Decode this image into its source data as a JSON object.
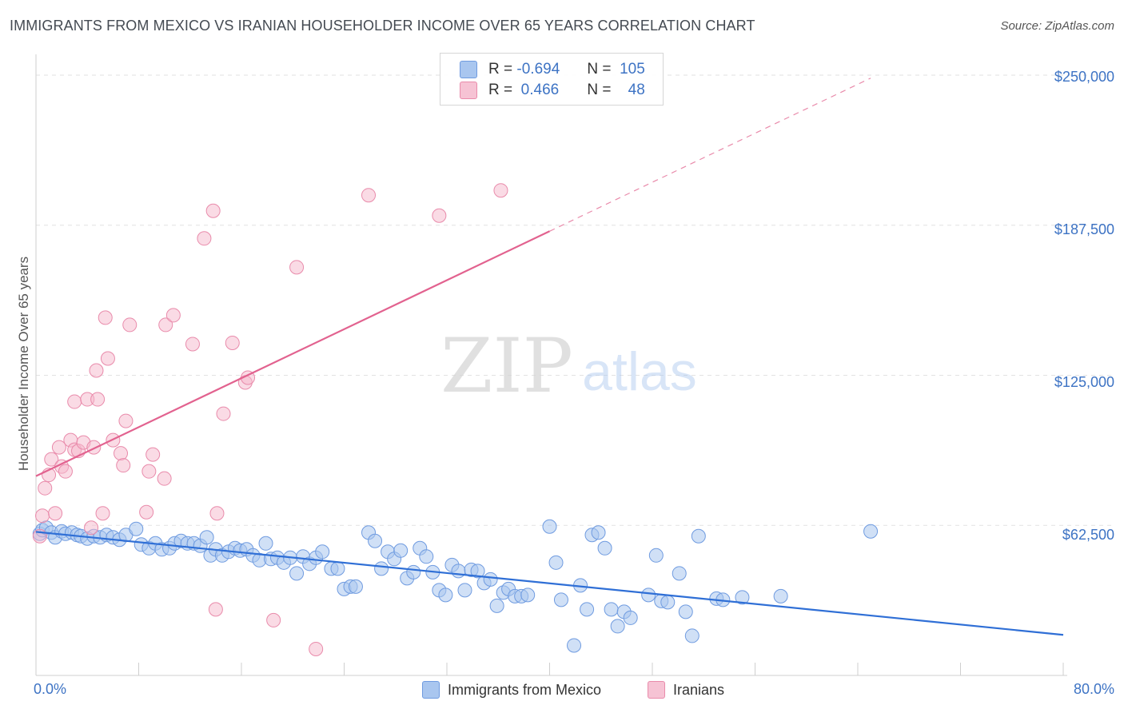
{
  "title": "IMMIGRANTS FROM MEXICO VS IRANIAN HOUSEHOLDER INCOME OVER 65 YEARS CORRELATION CHART",
  "source": "Source: ZipAtlas.com",
  "watermark": {
    "zip": "ZIP",
    "atlas": "atlas"
  },
  "colors": {
    "blue": "#3d73c4",
    "blue_fill": "#a9c6ef",
    "blue_line": "#2f6fd6",
    "pink_fill": "#f6b8cc",
    "pink_line": "#e2628f"
  },
  "legend": {
    "rows": [
      {
        "r_label": "R =",
        "r_value": "-0.694",
        "n_label": "N =",
        "n_value": "105"
      },
      {
        "r_label": "R =",
        "r_value": " 0.466",
        "n_label": "N =",
        "n_value": "48"
      }
    ]
  },
  "chart_data": {
    "type": "scatter",
    "title": "IMMIGRANTS FROM MEXICO VS IRANIAN HOUSEHOLDER INCOME OVER 65 YEARS CORRELATION CHART",
    "xlabel": "",
    "ylabel": "Householder Income Over 65 years",
    "x_tick_labels": [
      "0.0%",
      "80.0%"
    ],
    "y_tick_labels": [
      "$62,500",
      "$125,000",
      "$187,500",
      "$250,000"
    ],
    "xlim": [
      0,
      80
    ],
    "ylim": [
      0,
      255000
    ],
    "grid": true,
    "legend_placement": "bottom",
    "series": [
      {
        "name": "Immigrants from Mexico",
        "color": "#a9c6ef",
        "r": -0.694,
        "n": 105,
        "trend": {
          "x": [
            0,
            80
          ],
          "y": [
            59800,
            16900
          ]
        },
        "points": [
          [
            0.3,
            59000
          ],
          [
            0.5,
            60500
          ],
          [
            0.8,
            61500
          ],
          [
            1.2,
            59500
          ],
          [
            1.5,
            57500
          ],
          [
            2.0,
            60000
          ],
          [
            2.3,
            59000
          ],
          [
            2.8,
            59500
          ],
          [
            3.2,
            58500
          ],
          [
            3.5,
            58000
          ],
          [
            4.0,
            57000
          ],
          [
            4.5,
            58000
          ],
          [
            5.0,
            57500
          ],
          [
            5.5,
            58500
          ],
          [
            6.0,
            57500
          ],
          [
            6.5,
            56500
          ],
          [
            7.0,
            58500
          ],
          [
            7.8,
            61000
          ],
          [
            8.2,
            54500
          ],
          [
            8.8,
            53000
          ],
          [
            9.3,
            55000
          ],
          [
            9.8,
            52500
          ],
          [
            10.4,
            53000
          ],
          [
            10.8,
            55000
          ],
          [
            11.3,
            56000
          ],
          [
            11.8,
            55000
          ],
          [
            12.3,
            55000
          ],
          [
            12.8,
            54000
          ],
          [
            13.3,
            57500
          ],
          [
            13.6,
            50000
          ],
          [
            14.0,
            52500
          ],
          [
            14.5,
            50000
          ],
          [
            15.0,
            51500
          ],
          [
            15.5,
            53000
          ],
          [
            15.9,
            52000
          ],
          [
            16.4,
            52500
          ],
          [
            16.9,
            50000
          ],
          [
            17.4,
            48000
          ],
          [
            17.9,
            55000
          ],
          [
            18.3,
            48500
          ],
          [
            18.8,
            49000
          ],
          [
            19.3,
            47000
          ],
          [
            19.8,
            49000
          ],
          [
            20.3,
            42500
          ],
          [
            20.8,
            49500
          ],
          [
            21.3,
            46500
          ],
          [
            21.8,
            49000
          ],
          [
            22.3,
            51500
          ],
          [
            23.0,
            44500
          ],
          [
            23.5,
            44500
          ],
          [
            24.0,
            36000
          ],
          [
            24.5,
            37000
          ],
          [
            24.9,
            37000
          ],
          [
            25.9,
            59500
          ],
          [
            26.4,
            56000
          ],
          [
            26.9,
            44500
          ],
          [
            27.4,
            51500
          ],
          [
            27.9,
            48500
          ],
          [
            28.4,
            52000
          ],
          [
            28.9,
            40500
          ],
          [
            29.4,
            43000
          ],
          [
            29.9,
            53000
          ],
          [
            30.4,
            49500
          ],
          [
            30.9,
            43000
          ],
          [
            31.4,
            35500
          ],
          [
            31.9,
            33500
          ],
          [
            32.4,
            46000
          ],
          [
            32.9,
            43500
          ],
          [
            33.4,
            35500
          ],
          [
            33.9,
            44000
          ],
          [
            34.4,
            43500
          ],
          [
            34.9,
            38500
          ],
          [
            35.4,
            40000
          ],
          [
            35.9,
            29000
          ],
          [
            36.4,
            34500
          ],
          [
            36.8,
            36000
          ],
          [
            37.3,
            33000
          ],
          [
            37.8,
            33000
          ],
          [
            38.3,
            33500
          ],
          [
            40.0,
            62000
          ],
          [
            40.5,
            47000
          ],
          [
            40.9,
            31500
          ],
          [
            41.9,
            12500
          ],
          [
            42.4,
            37500
          ],
          [
            42.9,
            27500
          ],
          [
            43.3,
            58500
          ],
          [
            43.8,
            59500
          ],
          [
            44.3,
            53000
          ],
          [
            44.8,
            27500
          ],
          [
            45.3,
            20500
          ],
          [
            45.8,
            26500
          ],
          [
            46.3,
            24000
          ],
          [
            47.7,
            33500
          ],
          [
            48.3,
            50000
          ],
          [
            48.7,
            31000
          ],
          [
            49.2,
            30500
          ],
          [
            50.1,
            42500
          ],
          [
            50.6,
            26500
          ],
          [
            51.1,
            16500
          ],
          [
            51.6,
            58000
          ],
          [
            53.0,
            32000
          ],
          [
            53.5,
            31500
          ],
          [
            55.0,
            32500
          ],
          [
            58.0,
            33000
          ],
          [
            65.0,
            60000
          ]
        ]
      },
      {
        "name": "Iranians",
        "color": "#f6b8cc",
        "r": 0.466,
        "n": 48,
        "trend": {
          "x": [
            0,
            40
          ],
          "y": [
            83000,
            185000
          ]
        },
        "points": [
          [
            0.3,
            58000
          ],
          [
            0.5,
            66500
          ],
          [
            0.7,
            78000
          ],
          [
            1.0,
            83500
          ],
          [
            1.2,
            90000
          ],
          [
            1.5,
            67500
          ],
          [
            1.8,
            95000
          ],
          [
            2.0,
            87000
          ],
          [
            2.3,
            85000
          ],
          [
            2.7,
            98000
          ],
          [
            3.0,
            94000
          ],
          [
            3.0,
            114000
          ],
          [
            3.3,
            93500
          ],
          [
            3.7,
            97000
          ],
          [
            4.0,
            115000
          ],
          [
            4.3,
            61500
          ],
          [
            4.5,
            95000
          ],
          [
            4.7,
            127000
          ],
          [
            4.8,
            115000
          ],
          [
            5.2,
            67500
          ],
          [
            5.4,
            149000
          ],
          [
            5.6,
            132000
          ],
          [
            6.0,
            98000
          ],
          [
            6.6,
            92500
          ],
          [
            6.8,
            87500
          ],
          [
            7.0,
            106000
          ],
          [
            7.3,
            146000
          ],
          [
            8.6,
            68000
          ],
          [
            8.8,
            85000
          ],
          [
            9.1,
            92000
          ],
          [
            10.0,
            82000
          ],
          [
            10.1,
            146000
          ],
          [
            10.7,
            150000
          ],
          [
            12.2,
            138000
          ],
          [
            13.1,
            182000
          ],
          [
            13.8,
            193500
          ],
          [
            14.0,
            27500
          ],
          [
            14.1,
            67500
          ],
          [
            14.6,
            109000
          ],
          [
            15.3,
            138500
          ],
          [
            16.3,
            122000
          ],
          [
            16.5,
            124000
          ],
          [
            18.5,
            23000
          ],
          [
            20.3,
            170000
          ],
          [
            21.8,
            11000
          ],
          [
            25.9,
            200000
          ],
          [
            31.4,
            191500
          ],
          [
            36.2,
            202000
          ]
        ]
      }
    ]
  }
}
